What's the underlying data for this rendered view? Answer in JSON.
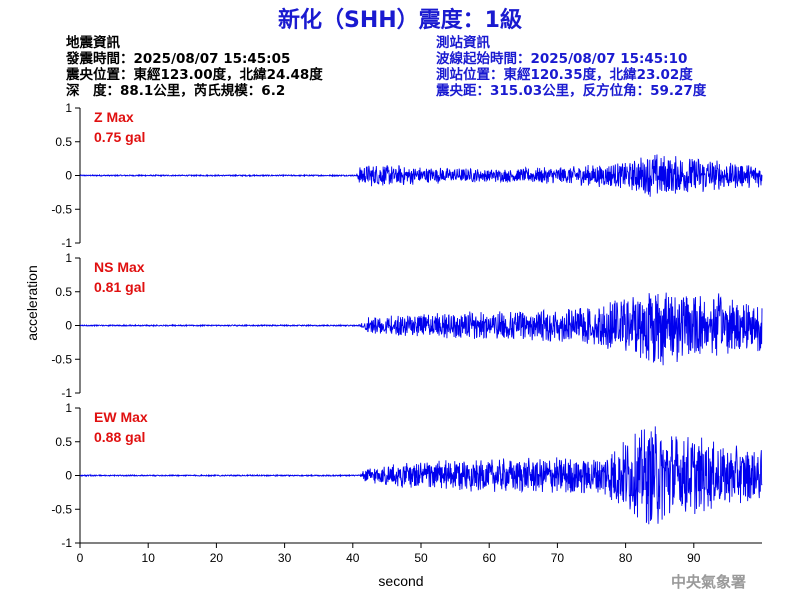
{
  "title": "新化（SHH）震度：1級",
  "event_info": {
    "heading": "地震資訊",
    "origin_time": "發震時間：2025/08/07 15:45:05",
    "epicenter": "震央位置：東經123.00度，北緯24.48度",
    "depth_magnitude": "深　度：88.1公里，芮氏規模：6.2"
  },
  "station_info": {
    "heading": "測站資訊",
    "wave_start": "波線起始時間：2025/08/07 15:45:10",
    "location": "測站位置：東經120.35度，北緯23.02度",
    "distance": "震央距：315.03公里，反方位角：59.27度"
  },
  "credit": "中央氣象署",
  "colors": {
    "title": "#1a1ad0",
    "trace": "#0000ee",
    "max_label": "#e01010",
    "credit": "#9a9a9a"
  },
  "chart_data": {
    "type": "line",
    "xlabel": "second",
    "ylabel": "acceleration",
    "xlim": [
      0,
      100
    ],
    "ylim": [
      -1,
      1
    ],
    "x_ticks": [
      "0",
      "10",
      "20",
      "30",
      "40",
      "50",
      "60",
      "70",
      "80",
      "90"
    ],
    "y_ticks": [
      "1",
      "0.5",
      "0",
      "-0.5",
      "-1"
    ],
    "grid": false,
    "panels": [
      {
        "component": "Z",
        "max_label": "Z Max",
        "max_value": "0.75 gal",
        "envelope": [
          [
            0,
            0.01
          ],
          [
            40.5,
            0.01
          ],
          [
            41,
            0.15
          ],
          [
            44,
            0.18
          ],
          [
            50,
            0.13
          ],
          [
            60,
            0.1
          ],
          [
            70,
            0.13
          ],
          [
            80,
            0.2
          ],
          [
            84,
            0.35
          ],
          [
            87,
            0.3
          ],
          [
            90,
            0.3
          ],
          [
            95,
            0.2
          ],
          [
            100,
            0.18
          ]
        ]
      },
      {
        "component": "NS",
        "max_label": "NS Max",
        "max_value": "0.81 gal",
        "envelope": [
          [
            0,
            0.01
          ],
          [
            41,
            0.01
          ],
          [
            42,
            0.12
          ],
          [
            46,
            0.15
          ],
          [
            50,
            0.18
          ],
          [
            60,
            0.22
          ],
          [
            70,
            0.25
          ],
          [
            76,
            0.3
          ],
          [
            80,
            0.45
          ],
          [
            84,
            0.7
          ],
          [
            88,
            0.55
          ],
          [
            92,
            0.5
          ],
          [
            96,
            0.45
          ],
          [
            100,
            0.4
          ]
        ]
      },
      {
        "component": "EW",
        "max_label": "EW Max",
        "max_value": "0.88 gal",
        "envelope": [
          [
            0,
            0.01
          ],
          [
            41,
            0.01
          ],
          [
            42,
            0.12
          ],
          [
            46,
            0.18
          ],
          [
            50,
            0.22
          ],
          [
            60,
            0.25
          ],
          [
            70,
            0.28
          ],
          [
            76,
            0.3
          ],
          [
            80,
            0.55
          ],
          [
            84,
            0.8
          ],
          [
            88,
            0.65
          ],
          [
            92,
            0.55
          ],
          [
            96,
            0.45
          ],
          [
            100,
            0.4
          ]
        ]
      }
    ]
  }
}
